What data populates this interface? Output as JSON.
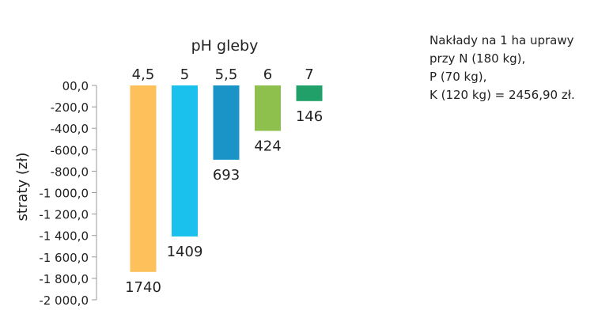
{
  "chart_data": {
    "type": "bar",
    "title": "pH gleby",
    "xlabel": "",
    "ylabel": "straty (zł)",
    "categories": [
      "4,5",
      "5",
      "5,5",
      "6",
      "7"
    ],
    "values": [
      -1740,
      -1409,
      -693,
      -424,
      -146
    ],
    "data_labels": [
      "1740",
      "1409",
      "693",
      "424",
      "146"
    ],
    "colors": [
      "#FDC05A",
      "#19C1EC",
      "#1A93C7",
      "#8DC04D",
      "#21A06A"
    ],
    "ylim": [
      -2000,
      0
    ],
    "y_ticks": [
      {
        "value": 0,
        "label": "00,0"
      },
      {
        "value": -200,
        "label": "-200,0"
      },
      {
        "value": -400,
        "label": "-400,0"
      },
      {
        "value": -600,
        "label": "-600,0"
      },
      {
        "value": -800,
        "label": "-800,0"
      },
      {
        "value": -1000,
        "label": "-1 000,0"
      },
      {
        "value": -1200,
        "label": "-1 200,0"
      },
      {
        "value": -1400,
        "label": "-1 400,0"
      },
      {
        "value": -1600,
        "label": "-1 600,0"
      },
      {
        "value": -1800,
        "label": "-1 800,0"
      },
      {
        "value": -2000,
        "label": "-2 000,0"
      }
    ],
    "category_axis_position": "top",
    "grid": false,
    "legend": "none"
  },
  "note": {
    "lines": [
      "Nakłady na 1 ha uprawy",
      "przy N (180 kg),",
      "P (70 kg),",
      "K (120 kg) = 2456,90 zł."
    ]
  }
}
